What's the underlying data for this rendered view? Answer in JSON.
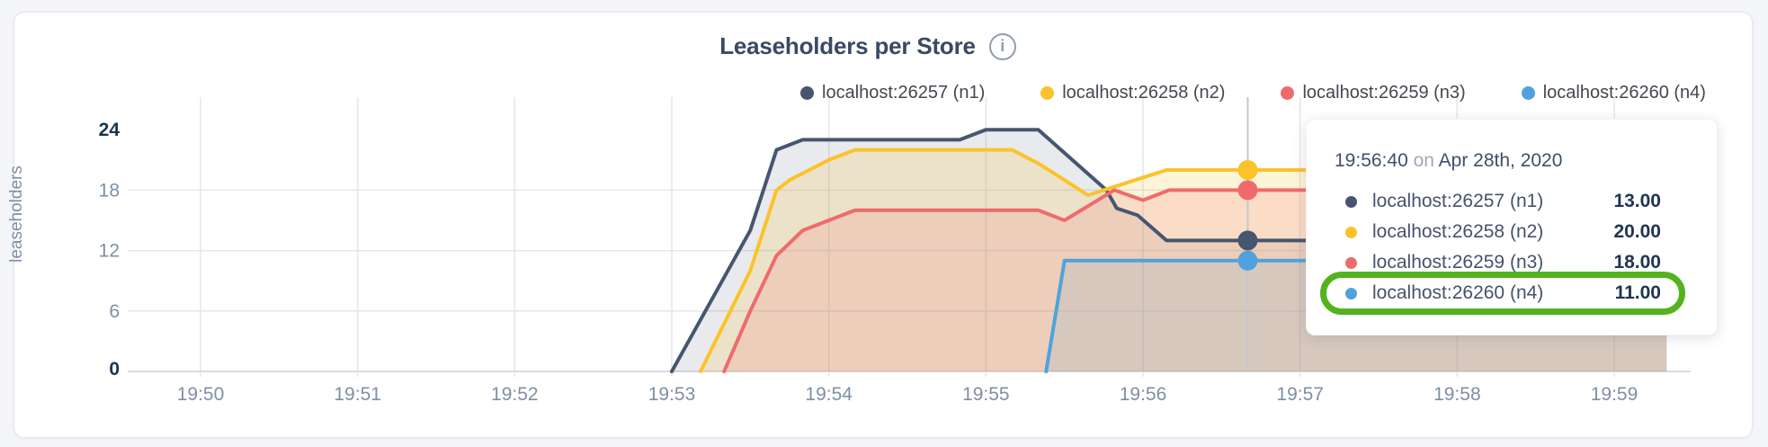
{
  "icons": {
    "info": "i"
  },
  "chart_data": {
    "type": "area",
    "title": "Leaseholders per Store",
    "ylabel": "leaseholders",
    "ylim": [
      0,
      24
    ],
    "yticks": [
      0,
      6,
      12,
      18,
      24
    ],
    "yticks_emphasized": [
      0,
      24
    ],
    "xticks": [
      "19:50",
      "19:51",
      "19:52",
      "19:53",
      "19:54",
      "19:55",
      "19:56",
      "19:57",
      "19:58",
      "19:59"
    ],
    "x_end": "19:59:20",
    "grid": true,
    "legend_position": "top-right",
    "series": [
      {
        "name": "localhost:26257 (n1)",
        "node": "n1",
        "color": "#47566F",
        "fill": "rgba(71,86,111,0.12)",
        "points": [
          [
            "19:53:00",
            0
          ],
          [
            "19:53:30",
            14
          ],
          [
            "19:53:40",
            22
          ],
          [
            "19:53:50",
            23
          ],
          [
            "19:54:50",
            23
          ],
          [
            "19:55:00",
            24
          ],
          [
            "19:55:20",
            24
          ],
          [
            "19:55:46",
            18
          ],
          [
            "19:55:50",
            16.2
          ],
          [
            "19:55:58",
            15.5
          ],
          [
            "19:56:09",
            13
          ],
          [
            "19:59:20",
            13
          ]
        ]
      },
      {
        "name": "localhost:26258 (n2)",
        "node": "n2",
        "color": "#FBC32A",
        "fill": "rgba(251,195,42,0.18)",
        "points": [
          [
            "19:53:11",
            0
          ],
          [
            "19:53:30",
            10
          ],
          [
            "19:53:40",
            18
          ],
          [
            "19:53:45",
            19
          ],
          [
            "19:54:00",
            21
          ],
          [
            "19:54:10",
            22
          ],
          [
            "19:55:10",
            22
          ],
          [
            "19:55:21",
            20.5
          ],
          [
            "19:55:39",
            17.5
          ],
          [
            "19:56:09",
            20
          ],
          [
            "19:59:20",
            20
          ]
        ]
      },
      {
        "name": "localhost:26259 (n3)",
        "node": "n3",
        "color": "#EF6B6B",
        "fill": "rgba(239,107,107,0.16)",
        "points": [
          [
            "19:53:20",
            0
          ],
          [
            "19:53:30",
            6
          ],
          [
            "19:53:40",
            11.5
          ],
          [
            "19:53:50",
            14
          ],
          [
            "19:54:00",
            15
          ],
          [
            "19:54:10",
            16
          ],
          [
            "19:55:20",
            16
          ],
          [
            "19:55:30",
            15
          ],
          [
            "19:55:49",
            18
          ],
          [
            "19:56:00",
            17
          ],
          [
            "19:56:10",
            18
          ],
          [
            "19:59:20",
            18
          ]
        ]
      },
      {
        "name": "localhost:26260 (n4)",
        "node": "n4",
        "color": "#51A2DC",
        "fill": "rgba(81,162,220,0.13)",
        "points": [
          [
            "19:55:23",
            0
          ],
          [
            "19:55:30",
            11
          ],
          [
            "19:59:20",
            11
          ]
        ]
      }
    ]
  },
  "tooltip": {
    "time": "19:56:40",
    "connector": "on",
    "date": "Apr 28th, 2020",
    "rows": [
      {
        "series": "localhost:26257 (n1)",
        "value": "13.00"
      },
      {
        "series": "localhost:26258 (n2)",
        "value": "20.00"
      },
      {
        "series": "localhost:26259 (n3)",
        "value": "18.00"
      },
      {
        "series": "localhost:26260 (n4)",
        "value": "11.00"
      }
    ],
    "highlighted_row": "localhost:26260 (n4)",
    "highlight_color": "#52B31E"
  },
  "colors": {
    "page_background": "#F4F5F8",
    "card_background": "#FFFFFF",
    "card_border": "#E4E5E9",
    "title_text": "#394A63",
    "tick_label": "#7E8FA6",
    "tick_label_emphasized": "#1B3354",
    "gridline": "#E3E6EC",
    "axis_baseline": "#D9DCE2",
    "crosshair": "#C3C8D0",
    "tooltip_time_text": "#3F4F6B",
    "tooltip_connector_text": "#9FA9B8",
    "tooltip_value_text": "#203554"
  }
}
